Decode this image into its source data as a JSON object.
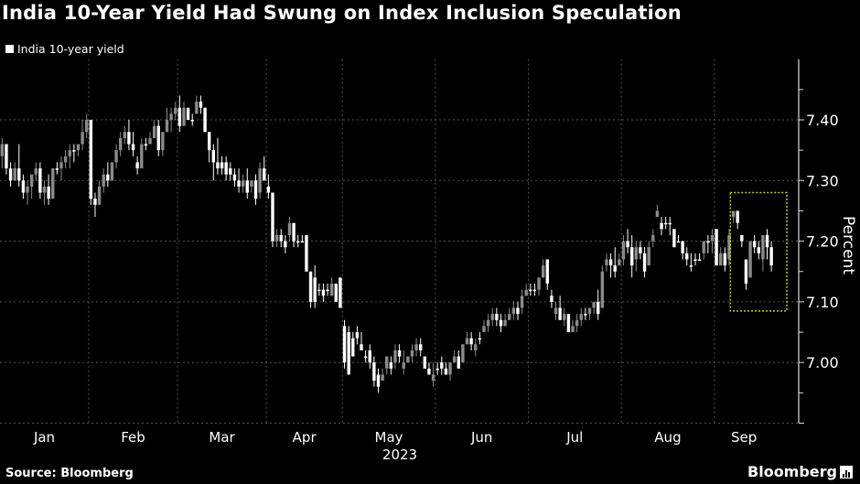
{
  "title": "India 10-Year Yield Had Swung on Index Inclusion Speculation",
  "source": "Source: Bloomberg",
  "logo": "Bloomberg",
  "colors": {
    "background": "#000000",
    "up_candle": "#8a8a8a",
    "down_candle": "#ffffff",
    "highlight": "#c8c84a",
    "grid": "#555555"
  },
  "chart_data": {
    "type": "candlestick",
    "title": "India 10-Year Yield Had Swung on Index Inclusion Speculation",
    "legend": [
      {
        "name": "India 10-year yield",
        "placement": "top-left"
      }
    ],
    "ylabel": "Percent",
    "xlabel": "2023",
    "ylim": [
      6.9,
      7.5
    ],
    "yticks": [
      7.0,
      7.1,
      7.2,
      7.3,
      7.4
    ],
    "ytick_labels": [
      "7.00",
      "7.10",
      "7.20",
      "7.30",
      "7.40"
    ],
    "grid": true,
    "candle_format": [
      "open",
      "high",
      "low",
      "close"
    ],
    "months": [
      {
        "label": "Jan",
        "candles": [
          [
            7.34,
            7.37,
            7.32,
            7.36
          ],
          [
            7.36,
            7.36,
            7.31,
            7.32
          ],
          [
            7.32,
            7.33,
            7.29,
            7.3
          ],
          [
            7.3,
            7.33,
            7.3,
            7.32
          ],
          [
            7.32,
            7.36,
            7.29,
            7.3
          ],
          [
            7.3,
            7.31,
            7.27,
            7.28
          ],
          [
            7.28,
            7.3,
            7.26,
            7.29
          ],
          [
            7.29,
            7.31,
            7.27,
            7.31
          ],
          [
            7.31,
            7.33,
            7.3,
            7.32
          ],
          [
            7.32,
            7.33,
            7.27,
            7.28
          ],
          [
            7.28,
            7.3,
            7.26,
            7.29
          ],
          [
            7.29,
            7.31,
            7.26,
            7.27
          ],
          [
            7.27,
            7.32,
            7.27,
            7.32
          ],
          [
            7.32,
            7.33,
            7.31,
            7.32
          ],
          [
            7.32,
            7.34,
            7.3,
            7.33
          ],
          [
            7.33,
            7.35,
            7.32,
            7.34
          ],
          [
            7.34,
            7.36,
            7.32,
            7.35
          ],
          [
            7.35,
            7.36,
            7.33,
            7.35
          ],
          [
            7.35,
            7.36,
            7.34,
            7.36
          ],
          [
            7.36,
            7.4,
            7.35,
            7.38
          ],
          [
            7.38,
            7.41,
            7.37,
            7.4
          ]
        ]
      },
      {
        "label": "Feb",
        "candles": [
          [
            7.4,
            7.4,
            7.26,
            7.27
          ],
          [
            7.27,
            7.28,
            7.24,
            7.26
          ],
          [
            7.26,
            7.3,
            7.26,
            7.29
          ],
          [
            7.29,
            7.32,
            7.28,
            7.31
          ],
          [
            7.31,
            7.33,
            7.29,
            7.3
          ],
          [
            7.3,
            7.33,
            7.3,
            7.33
          ],
          [
            7.33,
            7.36,
            7.32,
            7.35
          ],
          [
            7.35,
            7.38,
            7.34,
            7.37
          ],
          [
            7.37,
            7.39,
            7.36,
            7.38
          ],
          [
            7.38,
            7.4,
            7.35,
            7.36
          ],
          [
            7.36,
            7.38,
            7.34,
            7.35
          ],
          [
            7.33,
            7.34,
            7.31,
            7.32
          ],
          [
            7.32,
            7.37,
            7.32,
            7.36
          ],
          [
            7.36,
            7.37,
            7.35,
            7.36
          ],
          [
            7.36,
            7.38,
            7.36,
            7.37
          ],
          [
            7.37,
            7.4,
            7.37,
            7.39
          ],
          [
            7.39,
            7.4,
            7.34,
            7.35
          ],
          [
            7.35,
            7.38,
            7.34,
            7.38
          ],
          [
            7.38,
            7.42,
            7.38,
            7.4
          ],
          [
            7.4,
            7.42,
            7.38,
            7.41
          ],
          [
            7.41,
            7.43,
            7.4,
            7.42
          ]
        ]
      },
      {
        "label": "Mar",
        "candles": [
          [
            7.42,
            7.44,
            7.38,
            7.39
          ],
          [
            7.39,
            7.43,
            7.39,
            7.42
          ],
          [
            7.42,
            7.42,
            7.4,
            7.4
          ],
          [
            7.4,
            7.41,
            7.39,
            7.4
          ],
          [
            7.41,
            7.44,
            7.41,
            7.43
          ],
          [
            7.43,
            7.44,
            7.41,
            7.42
          ],
          [
            7.42,
            7.42,
            7.38,
            7.38
          ],
          [
            7.38,
            7.38,
            7.33,
            7.35
          ],
          [
            7.35,
            7.36,
            7.3,
            7.33
          ],
          [
            7.33,
            7.37,
            7.31,
            7.32
          ],
          [
            7.33,
            7.34,
            7.31,
            7.32
          ],
          [
            7.33,
            7.34,
            7.3,
            7.31
          ],
          [
            7.32,
            7.33,
            7.3,
            7.31
          ],
          [
            7.31,
            7.32,
            7.29,
            7.3
          ],
          [
            7.3,
            7.32,
            7.28,
            7.29
          ],
          [
            7.29,
            7.31,
            7.28,
            7.3
          ],
          [
            7.3,
            7.32,
            7.27,
            7.28
          ],
          [
            7.29,
            7.3,
            7.28,
            7.3
          ],
          [
            7.3,
            7.31,
            7.26,
            7.27
          ],
          [
            7.28,
            7.33,
            7.27,
            7.32
          ],
          [
            7.32,
            7.34,
            7.3,
            7.3
          ]
        ]
      },
      {
        "label": "Apr",
        "candles": [
          [
            7.29,
            7.31,
            7.27,
            7.28
          ],
          [
            7.28,
            7.28,
            7.19,
            7.2
          ],
          [
            7.2,
            7.22,
            7.19,
            7.21
          ],
          [
            7.21,
            7.22,
            7.19,
            7.2
          ],
          [
            7.2,
            7.21,
            7.18,
            7.19
          ],
          [
            7.21,
            7.24,
            7.2,
            7.23
          ],
          [
            7.23,
            7.23,
            7.19,
            7.2
          ],
          [
            7.2,
            7.21,
            7.19,
            7.2
          ],
          [
            7.2,
            7.21,
            7.2,
            7.2
          ],
          [
            7.21,
            7.21,
            7.15,
            7.15
          ],
          [
            7.15,
            7.15,
            7.09,
            7.1
          ],
          [
            7.14,
            7.16,
            7.09,
            7.1
          ],
          [
            7.12,
            7.13,
            7.11,
            7.12
          ],
          [
            7.12,
            7.13,
            7.1,
            7.11
          ],
          [
            7.12,
            7.13,
            7.11,
            7.12
          ],
          [
            7.11,
            7.14,
            7.11,
            7.13
          ],
          [
            7.13,
            7.13,
            7.1,
            7.1
          ],
          [
            7.14,
            7.14,
            7.09,
            7.09
          ]
        ]
      },
      {
        "label": "May",
        "candles": [
          [
            7.06,
            7.07,
            6.99,
            7.0
          ],
          [
            7.05,
            7.06,
            6.98,
            6.98
          ],
          [
            7.04,
            7.05,
            7.01,
            7.01
          ],
          [
            7.05,
            7.06,
            7.03,
            7.04
          ],
          [
            7.03,
            7.05,
            7.02,
            7.02
          ],
          [
            7.01,
            7.02,
            7.0,
            7.01
          ],
          [
            7.02,
            7.03,
            6.99,
            7.0
          ],
          [
            7.0,
            7.01,
            6.96,
            6.97
          ],
          [
            6.98,
            6.99,
            6.95,
            6.96
          ],
          [
            6.97,
            6.99,
            6.97,
            6.98
          ],
          [
            6.99,
            7.01,
            6.98,
            7.01
          ],
          [
            7.0,
            7.01,
            6.98,
            6.99
          ],
          [
            7.0,
            7.03,
            6.99,
            7.02
          ],
          [
            7.02,
            7.03,
            7.0,
            7.01
          ],
          [
            6.99,
            7.02,
            6.98,
            7.0
          ],
          [
            7.0,
            7.01,
            7.0,
            7.01
          ],
          [
            7.01,
            7.03,
            7.0,
            7.02
          ],
          [
            7.02,
            7.04,
            7.01,
            7.03
          ],
          [
            7.03,
            7.04,
            7.01,
            7.02
          ],
          [
            7.01,
            7.01,
            6.99,
            6.99
          ],
          [
            6.99,
            7.0,
            6.98,
            6.98
          ],
          [
            6.97,
            7.0,
            6.96,
            6.98
          ]
        ]
      },
      {
        "label": "Jun",
        "candles": [
          [
            6.99,
            7.0,
            6.98,
            6.99
          ],
          [
            7.0,
            7.01,
            6.98,
            6.99
          ],
          [
            6.99,
            7.0,
            6.98,
            6.98
          ],
          [
            6.98,
            7.0,
            6.97,
            7.0
          ],
          [
            7.0,
            7.02,
            7.0,
            7.01
          ],
          [
            7.01,
            7.02,
            6.99,
            6.99
          ],
          [
            7.0,
            7.03,
            7.0,
            7.03
          ],
          [
            7.03,
            7.05,
            7.03,
            7.04
          ],
          [
            7.04,
            7.05,
            7.02,
            7.03
          ],
          [
            7.02,
            7.04,
            7.01,
            7.03
          ],
          [
            7.04,
            7.05,
            7.03,
            7.04
          ],
          [
            7.05,
            7.07,
            7.05,
            7.06
          ],
          [
            7.06,
            7.08,
            7.05,
            7.07
          ],
          [
            7.07,
            7.09,
            7.06,
            7.08
          ],
          [
            7.08,
            7.09,
            7.06,
            7.07
          ],
          [
            7.07,
            7.08,
            7.05,
            7.06
          ],
          [
            7.06,
            7.08,
            7.06,
            7.07
          ],
          [
            7.07,
            7.09,
            7.07,
            7.08
          ],
          [
            7.08,
            7.1,
            7.07,
            7.09
          ],
          [
            7.09,
            7.1,
            7.07,
            7.08
          ],
          [
            7.09,
            7.12,
            7.08,
            7.11
          ],
          [
            7.11,
            7.13,
            7.11,
            7.12
          ]
        ]
      },
      {
        "label": "Jul",
        "candles": [
          [
            7.12,
            7.13,
            7.11,
            7.12
          ],
          [
            7.12,
            7.13,
            7.11,
            7.12
          ],
          [
            7.12,
            7.14,
            7.11,
            7.14
          ],
          [
            7.14,
            7.17,
            7.14,
            7.16
          ],
          [
            7.17,
            7.17,
            7.12,
            7.13
          ],
          [
            7.11,
            7.12,
            7.09,
            7.1
          ],
          [
            7.08,
            7.1,
            7.07,
            7.09
          ],
          [
            7.09,
            7.11,
            7.07,
            7.07
          ],
          [
            7.07,
            7.09,
            7.06,
            7.08
          ],
          [
            7.08,
            7.08,
            7.05,
            7.05
          ],
          [
            7.05,
            7.07,
            7.05,
            7.06
          ],
          [
            7.06,
            7.08,
            7.05,
            7.07
          ],
          [
            7.07,
            7.09,
            7.06,
            7.08
          ],
          [
            7.08,
            7.09,
            7.07,
            7.08
          ],
          [
            7.08,
            7.09,
            7.07,
            7.09
          ],
          [
            7.09,
            7.1,
            7.08,
            7.1
          ],
          [
            7.1,
            7.12,
            7.07,
            7.08
          ],
          [
            7.09,
            7.16,
            7.09,
            7.15
          ],
          [
            7.16,
            7.18,
            7.15,
            7.17
          ],
          [
            7.17,
            7.18,
            7.14,
            7.16
          ],
          [
            7.16,
            7.19,
            7.14,
            7.15
          ],
          [
            7.16,
            7.18,
            7.16,
            7.17
          ]
        ]
      },
      {
        "label": "Aug",
        "candles": [
          [
            7.17,
            7.21,
            7.16,
            7.2
          ],
          [
            7.2,
            7.22,
            7.18,
            7.19
          ],
          [
            7.19,
            7.21,
            7.14,
            7.16
          ],
          [
            7.17,
            7.2,
            7.15,
            7.19
          ],
          [
            7.19,
            7.2,
            7.17,
            7.18
          ],
          [
            7.18,
            7.19,
            7.14,
            7.15
          ],
          [
            7.16,
            7.2,
            7.16,
            7.19
          ],
          [
            7.2,
            7.22,
            7.19,
            7.21
          ],
          [
            7.24,
            7.26,
            7.24,
            7.25
          ],
          [
            7.23,
            7.24,
            7.21,
            7.22
          ],
          [
            7.23,
            7.24,
            7.22,
            7.23
          ],
          [
            7.23,
            7.24,
            7.21,
            7.23
          ],
          [
            7.22,
            7.22,
            7.19,
            7.19
          ],
          [
            7.2,
            7.21,
            7.2,
            7.2
          ],
          [
            7.2,
            7.2,
            7.17,
            7.18
          ],
          [
            7.18,
            7.19,
            7.16,
            7.17
          ],
          [
            7.16,
            7.18,
            7.15,
            7.16
          ],
          [
            7.17,
            7.18,
            7.16,
            7.17
          ],
          [
            7.17,
            7.18,
            7.17,
            7.17
          ],
          [
            7.18,
            7.2,
            7.17,
            7.2
          ],
          [
            7.2,
            7.21,
            7.18,
            7.2
          ],
          [
            7.2,
            7.22,
            7.18,
            7.21
          ]
        ]
      },
      {
        "label": "Sep",
        "candles": [
          [
            7.22,
            7.22,
            7.16,
            7.16
          ],
          [
            7.16,
            7.19,
            7.16,
            7.18
          ],
          [
            7.18,
            7.19,
            7.15,
            7.16
          ],
          [
            7.17,
            7.22,
            7.16,
            7.21
          ],
          [
            7.24,
            7.25,
            7.23,
            7.25
          ],
          [
            7.25,
            7.25,
            7.22,
            7.23
          ],
          [
            7.21,
            7.21,
            7.19,
            7.2
          ],
          [
            7.17,
            7.17,
            7.12,
            7.13
          ],
          [
            7.14,
            7.2,
            7.14,
            7.2
          ],
          [
            7.2,
            7.21,
            7.18,
            7.19
          ],
          [
            7.19,
            7.2,
            7.17,
            7.18
          ],
          [
            7.17,
            7.21,
            7.15,
            7.21
          ],
          [
            7.21,
            7.22,
            7.17,
            7.19
          ],
          [
            7.19,
            7.2,
            7.15,
            7.16
          ]
        ]
      }
    ],
    "highlight": {
      "month": "Sep",
      "from_candle": 4,
      "low": 7.085,
      "high": 7.28,
      "style": "dotted-box"
    }
  }
}
